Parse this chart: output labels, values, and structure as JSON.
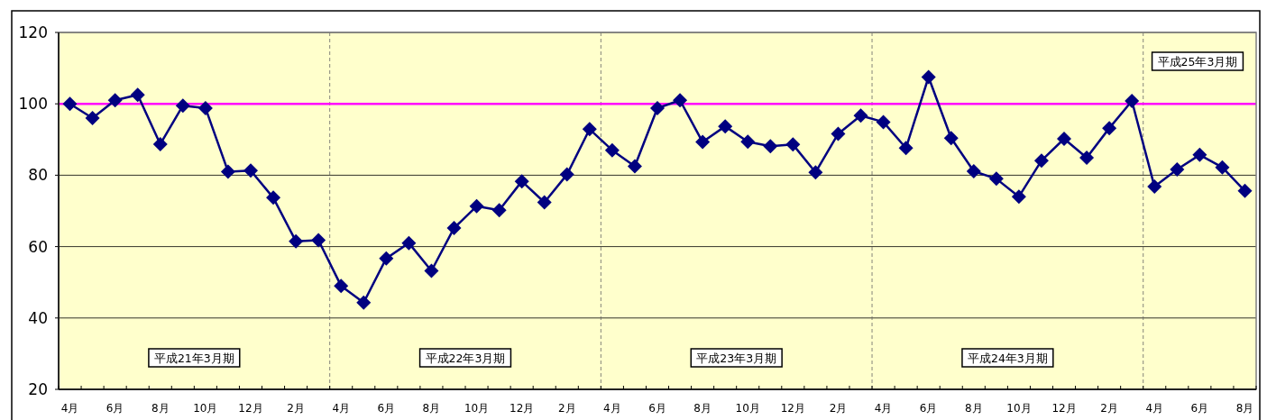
{
  "chart_data": {
    "type": "line",
    "marker": "diamond",
    "grid": "y",
    "categories": [
      "4月",
      null,
      "6月",
      null,
      "8月",
      null,
      "10月",
      null,
      "12月",
      null,
      "2月",
      null,
      "4月",
      null,
      "6月",
      null,
      "8月",
      null,
      "10月",
      null,
      "12月",
      null,
      "2月",
      null,
      "4月",
      null,
      "6月",
      null,
      "8月",
      null,
      "10月",
      null,
      "12月",
      null,
      "2月",
      null,
      "4月",
      null,
      "6月",
      null,
      "8月",
      null,
      "10月",
      null,
      "12月",
      null,
      "2月",
      null,
      "4月",
      null,
      "6月",
      null,
      "8月"
    ],
    "series": [
      {
        "color": "#000080",
        "values": [
          100,
          96,
          101,
          102.5,
          88.7,
          99.5,
          98.8,
          81,
          81.3,
          73.7,
          61.5,
          61.8,
          49,
          44.3,
          56.7,
          61,
          53.2,
          65.2,
          71.3,
          70.2,
          78.3,
          72.4,
          80.2,
          92.9,
          87,
          82.5,
          98.8,
          101,
          89.3,
          93.7,
          89.4,
          88.1,
          88.6,
          80.8,
          91.6,
          96.7,
          94.9,
          87.6,
          107.5,
          90.4,
          81.1,
          79,
          74,
          84.1,
          90.2,
          84.9,
          93.2,
          100.8,
          76.8,
          81.6,
          85.7,
          82.2,
          75.6
        ]
      }
    ],
    "ylim": [
      20,
      120
    ],
    "yticks": [
      20,
      40,
      60,
      80,
      100,
      120
    ],
    "ref_lines": [
      {
        "axis": "y",
        "value": 100,
        "color": "#ff00ff"
      }
    ],
    "annotations": [
      "平成21年3月期",
      "平成22年3月期",
      "平成23年3月期",
      "平成24年3月期",
      "平成25年3月期"
    ]
  }
}
